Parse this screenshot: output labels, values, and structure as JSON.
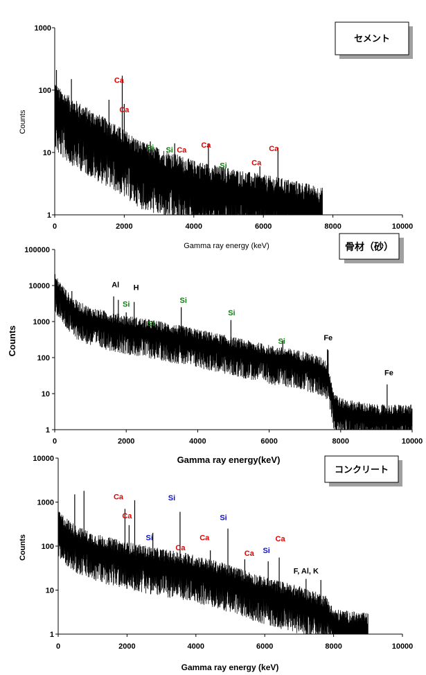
{
  "chart_data": [
    {
      "type": "line",
      "title": "セメント",
      "xlabel": "Gamma ray energy (keV)",
      "ylabel": "Counts",
      "xlim": [
        0,
        10000
      ],
      "ylim": [
        1,
        1000
      ],
      "yscale": "log",
      "x_ticks": [
        "0",
        "2000",
        "4000",
        "6000",
        "8000",
        "10000"
      ],
      "y_ticks": [
        "1",
        "10",
        "100",
        "1000"
      ],
      "colors": {
        "Ca": "#e00000",
        "Si": "#108010",
        "default": "#000000"
      },
      "decay": {
        "e": [
          0,
          100,
          500,
          1000,
          1700,
          2500,
          4000,
          5500,
          7000,
          7700
        ],
        "v": [
          60,
          45,
          30,
          20,
          12,
          6,
          3,
          2,
          1.4,
          1.1
        ]
      },
      "xmax": 7700,
      "peaks": [
        {
          "x": 1942,
          "v": 170
        },
        {
          "x": 2000,
          "v": 60
        },
        {
          "x": 2750,
          "v": 15
        },
        {
          "x": 3450,
          "v": 14
        },
        {
          "x": 4420,
          "v": 14
        },
        {
          "x": 4800,
          "v": 5
        },
        {
          "x": 5900,
          "v": 6
        },
        {
          "x": 6420,
          "v": 12
        },
        {
          "x": 50,
          "v": 210
        },
        {
          "x": 480,
          "v": 150
        },
        {
          "x": 1560,
          "v": 70
        }
      ],
      "peak_labels": [
        {
          "text": "Ca",
          "el": "Ca",
          "x": 1850,
          "v": 130
        },
        {
          "text": "Ca",
          "el": "Ca",
          "x": 2000,
          "v": 44
        },
        {
          "text": "Si",
          "el": "Si",
          "x": 2750,
          "v": 11
        },
        {
          "text": "Si",
          "el": "Si",
          "x": 3300,
          "v": 10
        },
        {
          "text": "Ca",
          "el": "Ca",
          "x": 3650,
          "v": 10
        },
        {
          "text": "Ca",
          "el": "Ca",
          "x": 4350,
          "v": 12
        },
        {
          "text": "Si",
          "el": "Si",
          "x": 4850,
          "v": 5.6
        },
        {
          "text": "Ca",
          "el": "Ca",
          "x": 5800,
          "v": 6.2
        },
        {
          "text": "Ca",
          "el": "Ca",
          "x": 6300,
          "v": 10.5
        }
      ]
    },
    {
      "type": "line",
      "title": "骨材（砂）",
      "xlabel": "Gamma ray energy(keV)",
      "ylabel": "Counts",
      "xlim": [
        0,
        10000
      ],
      "ylim": [
        1,
        100000
      ],
      "yscale": "log",
      "x_ticks": [
        "0",
        "2000",
        "4000",
        "6000",
        "8000",
        "10000"
      ],
      "y_ticks": [
        "1",
        "10",
        "100",
        "1000",
        "10000",
        "100000"
      ],
      "colors": {
        "Si": "#108010",
        "default": "#000000"
      },
      "decay": {
        "e": [
          0,
          100,
          500,
          1000,
          2000,
          3000,
          4000,
          5000,
          6000,
          7000,
          7500,
          7650,
          7800,
          8000,
          9000,
          10000
        ],
        "v": [
          9000,
          6000,
          1800,
          1000,
          600,
          400,
          250,
          150,
          90,
          60,
          40,
          30,
          5,
          3,
          2,
          2
        ]
      },
      "xmax": 10000,
      "peaks": [
        {
          "x": 30,
          "v": 15000
        },
        {
          "x": 200,
          "v": 9000
        },
        {
          "x": 480,
          "v": 7000
        },
        {
          "x": 1650,
          "v": 5000
        },
        {
          "x": 1780,
          "v": 4000
        },
        {
          "x": 2000,
          "v": 1800
        },
        {
          "x": 2223,
          "v": 3500
        },
        {
          "x": 2750,
          "v": 900
        },
        {
          "x": 3540,
          "v": 2500
        },
        {
          "x": 4930,
          "v": 1100
        },
        {
          "x": 6380,
          "v": 300
        },
        {
          "x": 7630,
          "v": 170
        },
        {
          "x": 7650,
          "v": 160
        },
        {
          "x": 9300,
          "v": 18
        }
      ],
      "peak_labels": [
        {
          "text": "Al",
          "el": "default",
          "x": 1700,
          "v": 9000
        },
        {
          "text": "H",
          "el": "default",
          "x": 2280,
          "v": 7500
        },
        {
          "text": "Si",
          "el": "Si",
          "x": 2000,
          "v": 2600
        },
        {
          "text": "Si",
          "el": "Si",
          "x": 2700,
          "v": 750
        },
        {
          "text": "Si",
          "el": "Si",
          "x": 3600,
          "v": 3300
        },
        {
          "text": "Si",
          "el": "Si",
          "x": 4950,
          "v": 1500
        },
        {
          "text": "Si",
          "el": "Si",
          "x": 6350,
          "v": 240
        },
        {
          "text": "Fe",
          "el": "default",
          "x": 7650,
          "v": 300
        },
        {
          "text": "Fe",
          "el": "default",
          "x": 9350,
          "v": 32
        }
      ]
    },
    {
      "type": "line",
      "title": "コンクリート",
      "xlabel": "Gamma ray energy (keV)",
      "ylabel": "Counts",
      "xlim": [
        0,
        10000
      ],
      "ylim": [
        1,
        10000
      ],
      "yscale": "log",
      "x_ticks": [
        "0",
        "2000",
        "4000",
        "6000",
        "8000",
        "10000"
      ],
      "y_ticks": [
        "1",
        "10",
        "100",
        "1000",
        "10000"
      ],
      "colors": {
        "Ca": "#e00000",
        "Si": "#1010d0",
        "default": "#000000"
      },
      "decay": {
        "e": [
          0,
          100,
          500,
          1000,
          2000,
          3000,
          4000,
          5000,
          6000,
          7000,
          7800,
          8000,
          9000,
          10000
        ],
        "v": [
          250,
          220,
          120,
          80,
          50,
          35,
          25,
          15,
          8,
          5,
          3,
          1.5,
          1.2,
          1
        ]
      },
      "xmax": 9000,
      "peaks": [
        {
          "x": 30,
          "v": 600
        },
        {
          "x": 480,
          "v": 1500
        },
        {
          "x": 750,
          "v": 1800
        },
        {
          "x": 1940,
          "v": 700
        },
        {
          "x": 2060,
          "v": 300
        },
        {
          "x": 2223,
          "v": 1100
        },
        {
          "x": 2750,
          "v": 200
        },
        {
          "x": 3540,
          "v": 600
        },
        {
          "x": 3700,
          "v": 70
        },
        {
          "x": 4420,
          "v": 80
        },
        {
          "x": 4930,
          "v": 250
        },
        {
          "x": 5420,
          "v": 50
        },
        {
          "x": 6100,
          "v": 45
        },
        {
          "x": 6420,
          "v": 55
        },
        {
          "x": 7200,
          "v": 18
        },
        {
          "x": 7630,
          "v": 17
        }
      ],
      "peak_labels": [
        {
          "text": "Ca",
          "el": "Ca",
          "x": 1750,
          "v": 1150
        },
        {
          "text": "Ca",
          "el": "Ca",
          "x": 2000,
          "v": 430
        },
        {
          "text": "Si",
          "el": "Si",
          "x": 3300,
          "v": 1100
        },
        {
          "text": "Si",
          "el": "Si",
          "x": 2650,
          "v": 135
        },
        {
          "text": "Ca",
          "el": "Ca",
          "x": 3550,
          "v": 80
        },
        {
          "text": "Ca",
          "el": "Ca",
          "x": 4250,
          "v": 135
        },
        {
          "text": "Si",
          "el": "Si",
          "x": 4800,
          "v": 390
        },
        {
          "text": "Ca",
          "el": "Ca",
          "x": 5550,
          "v": 60
        },
        {
          "text": "Si",
          "el": "Si",
          "x": 6050,
          "v": 70
        },
        {
          "text": "Ca",
          "el": "Ca",
          "x": 6450,
          "v": 130
        },
        {
          "text": "F, Al, K",
          "el": "default",
          "x": 7200,
          "v": 24
        }
      ]
    }
  ]
}
